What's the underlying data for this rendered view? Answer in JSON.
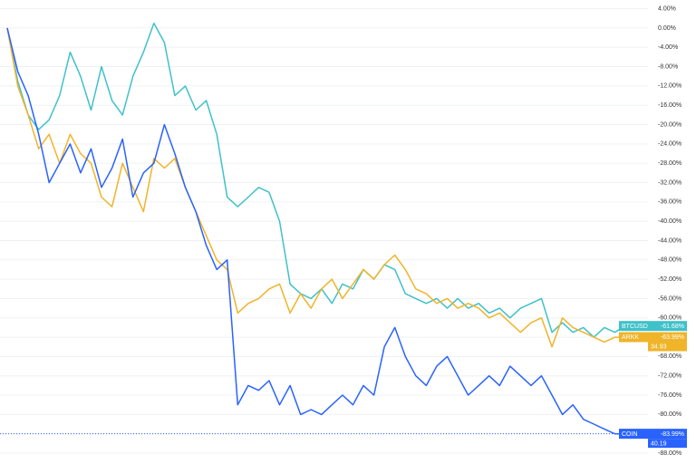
{
  "chart_data": {
    "type": "line",
    "categories": [
      null,
      null,
      null,
      null,
      null,
      null,
      null,
      null,
      null,
      null,
      null,
      null,
      null,
      null,
      null,
      null,
      null,
      null,
      null,
      null,
      null,
      null,
      null,
      null,
      null,
      null,
      null,
      null,
      null,
      null,
      null,
      null,
      null,
      null,
      null,
      null,
      null,
      null,
      null,
      null,
      null,
      null,
      null,
      null,
      null,
      null,
      null,
      null,
      null,
      null,
      null,
      null,
      null,
      null,
      null,
      null,
      null,
      null,
      null,
      null
    ],
    "series": [
      {
        "name": "BTCUSD",
        "color": "#3fc1c9",
        "end_label": "-61.68%",
        "values": [
          0,
          -11,
          -18,
          -21,
          -19,
          -14,
          -5,
          -10,
          -17,
          -8,
          -15,
          -18,
          -10,
          -5,
          1,
          -3,
          -14,
          -12,
          -17,
          -15,
          -22,
          -35,
          -37,
          -35,
          -33,
          -34,
          -40,
          -53,
          -55,
          -56,
          -54,
          -57,
          -53,
          -54,
          -50,
          -52,
          -49,
          -50,
          -55,
          -56,
          -57,
          -56,
          -58,
          -56,
          -58,
          -57,
          -59,
          -58,
          -60,
          -58,
          -57,
          -56,
          -63,
          -61,
          -63,
          -62,
          -64,
          -62,
          -63,
          -61.68
        ]
      },
      {
        "name": "ARKK",
        "color": "#f0b429",
        "end_label": "-63.99%",
        "last_price": "34.93",
        "values": [
          0,
          -12,
          -18,
          -25,
          -22,
          -28,
          -22,
          -26,
          -28,
          -35,
          -37,
          -28,
          -33,
          -38,
          -27,
          -29,
          -27,
          -33,
          -38,
          -43,
          -48,
          -50,
          -59,
          -57,
          -56,
          -54,
          -53,
          -59,
          -55,
          -58,
          -54,
          -52,
          -56,
          -53,
          -50,
          -52,
          -49,
          -47,
          -50,
          -54,
          -55,
          -57,
          -56,
          -58,
          -57,
          -58,
          -60,
          -59,
          -61,
          -63,
          -61,
          -60,
          -66,
          -60,
          -62,
          -63,
          -64,
          -65,
          -64,
          -63.99
        ]
      },
      {
        "name": "COIN",
        "color": "#2962ff",
        "end_label": "-83.99%",
        "last_price": "40.19",
        "values": [
          0,
          -9,
          -14,
          -22,
          -32,
          -28,
          -24,
          -30,
          -25,
          -33,
          -29,
          -23,
          -35,
          -30,
          -28,
          -20,
          -26,
          -33,
          -38,
          -45,
          -50,
          -48,
          -78,
          -74,
          -75,
          -73,
          -78,
          -74,
          -80,
          -79,
          -80,
          -78,
          -76,
          -78,
          -74,
          -76,
          -66,
          -62,
          -68,
          -72,
          -74,
          -70,
          -68,
          -72,
          -76,
          -74,
          -72,
          -74,
          -70,
          -72,
          -74,
          -72,
          -76,
          -80,
          -78,
          -81,
          -82,
          -83,
          -84,
          -83.99
        ]
      }
    ],
    "ylim": [
      -90.25,
      5.8
    ],
    "yticks": [
      {
        "value": 4,
        "label": "4.00%"
      },
      {
        "value": 0,
        "label": "0.00%"
      },
      {
        "value": -4,
        "label": "-4.00%"
      },
      {
        "value": -8,
        "label": "-8.00%"
      },
      {
        "value": -12,
        "label": "-12.00%"
      },
      {
        "value": -16,
        "label": "-16.00%"
      },
      {
        "value": -20,
        "label": "-20.00%"
      },
      {
        "value": -24,
        "label": "-24.00%"
      },
      {
        "value": -28,
        "label": "-28.00%"
      },
      {
        "value": -32,
        "label": "-32.00%"
      },
      {
        "value": -36,
        "label": "-36.00%"
      },
      {
        "value": -40,
        "label": "-40.00%"
      },
      {
        "value": -44,
        "label": "-44.00%"
      },
      {
        "value": -48,
        "label": "-48.00%"
      },
      {
        "value": -52,
        "label": "-52.00%"
      },
      {
        "value": -56,
        "label": "-56.00%"
      },
      {
        "value": -60,
        "label": "-60.00%"
      },
      {
        "value": -64,
        "label": "-64.00%"
      },
      {
        "value": -68,
        "label": "-68.00%"
      },
      {
        "value": -72,
        "label": "-72.00%"
      },
      {
        "value": -76,
        "label": "-76.00%"
      },
      {
        "value": -80,
        "label": "-80.00%"
      },
      {
        "value": -84,
        "label": "-84.00%"
      },
      {
        "value": -88,
        "label": "-88.00%"
      }
    ],
    "grid": true
  }
}
